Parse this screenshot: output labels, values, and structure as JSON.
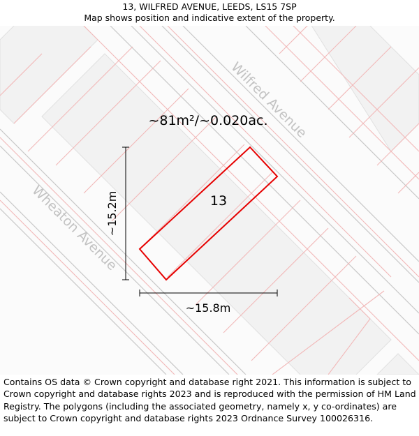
{
  "header": {
    "address": "13, WILFRED AVENUE, LEEDS, LS15 7SP",
    "subtitle": "Map shows position and indicative extent of the property."
  },
  "map": {
    "plot_number": "13",
    "area_label": "~81m²/~0.020ac.",
    "width_label": "~15.8m",
    "height_label": "~15.2m",
    "roads": [
      {
        "name": "Wilfred Avenue"
      },
      {
        "name": "Wheaton Avenue"
      }
    ],
    "colors": {
      "property_outline": "#e60000",
      "parcel_lines": "#f2b8b8",
      "building_fill": "#f2f2f2",
      "road_edges": "#c8c8c8",
      "dimension_lines": "#000000"
    }
  },
  "footer": {
    "attribution": "Contains OS data © Crown copyright and database right 2021. This information is subject to Crown copyright and database rights 2023 and is reproduced with the permission of HM Land Registry. The polygons (including the associated geometry, namely x, y co-ordinates) are subject to Crown copyright and database rights 2023 Ordnance Survey 100026316."
  }
}
